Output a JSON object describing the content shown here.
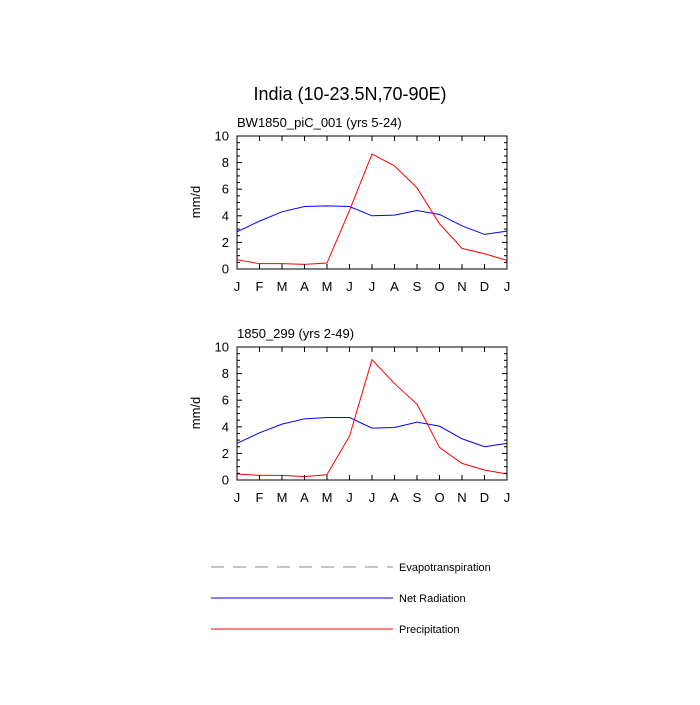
{
  "title": "India (10-23.5N,70-90E)",
  "chart_data": [
    {
      "type": "line",
      "subtitle": "BW1850_piC_001 (yrs 5-24)",
      "ylabel": "mm/d",
      "ylim": [
        0,
        10
      ],
      "yticks": [
        0,
        2,
        4,
        6,
        8,
        10
      ],
      "x_tick_labels": [
        "J",
        "F",
        "M",
        "A",
        "M",
        "J",
        "J",
        "A",
        "S",
        "O",
        "N",
        "D",
        "J"
      ],
      "grid": false,
      "series": [
        {
          "name": "Net Radiation",
          "color": "#0000ff",
          "values": [
            2.8,
            3.6,
            4.3,
            4.7,
            4.75,
            4.7,
            4.0,
            4.05,
            4.4,
            4.1,
            3.25,
            2.6,
            2.85
          ]
        },
        {
          "name": "Precipitation",
          "color": "#ff0000",
          "values": [
            0.7,
            0.4,
            0.4,
            0.35,
            0.45,
            4.4,
            8.65,
            7.75,
            6.1,
            3.4,
            1.55,
            1.15,
            0.65
          ]
        }
      ]
    },
    {
      "type": "line",
      "subtitle": "1850_299 (yrs 2-49)",
      "ylabel": "mm/d",
      "ylim": [
        0,
        10
      ],
      "yticks": [
        0,
        2,
        4,
        6,
        8,
        10
      ],
      "x_tick_labels": [
        "J",
        "F",
        "M",
        "A",
        "M",
        "J",
        "J",
        "A",
        "S",
        "O",
        "N",
        "D",
        "J"
      ],
      "grid": false,
      "series": [
        {
          "name": "Net Radiation",
          "color": "#0000ff",
          "values": [
            2.75,
            3.55,
            4.2,
            4.6,
            4.7,
            4.7,
            3.9,
            3.95,
            4.35,
            4.05,
            3.1,
            2.5,
            2.75
          ]
        },
        {
          "name": "Precipitation",
          "color": "#ff0000",
          "values": [
            0.45,
            0.35,
            0.35,
            0.25,
            0.4,
            3.3,
            9.05,
            7.25,
            5.7,
            2.45,
            1.25,
            0.75,
            0.45
          ]
        }
      ]
    }
  ],
  "legend": [
    {
      "label": "Evapotranspiration",
      "color": "#888888",
      "dashed": true
    },
    {
      "label": "Net Radiation",
      "color": "#0000ff",
      "dashed": false
    },
    {
      "label": "Precipitation",
      "color": "#ff0000",
      "dashed": false
    }
  ]
}
